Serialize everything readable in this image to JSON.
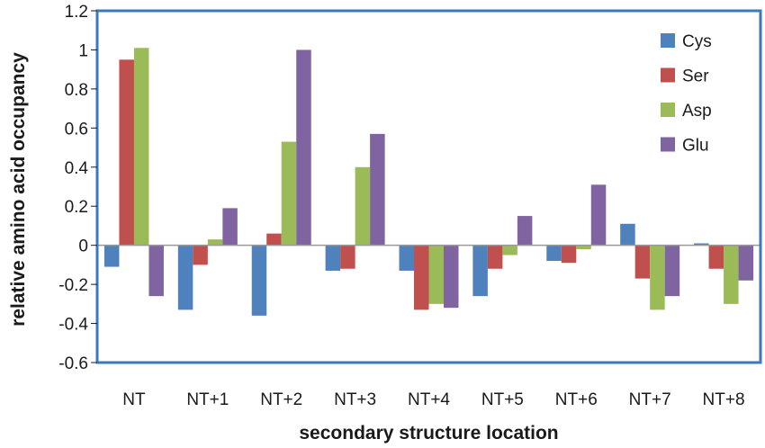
{
  "chart_data": {
    "type": "bar",
    "xlabel": "secondary structure location",
    "ylabel": "relative amino acid occupancy",
    "categories": [
      "NT",
      "NT+1",
      "NT+2",
      "NT+3",
      "NT+4",
      "NT+5",
      "NT+6",
      "NT+7",
      "NT+8"
    ],
    "ylim": [
      -0.6,
      1.2
    ],
    "yticks": [
      -0.6,
      -0.4,
      -0.2,
      0,
      0.2,
      0.4,
      0.6,
      0.8,
      1,
      1.2
    ],
    "ytick_labels": [
      "-0.6",
      "-0.4",
      "-0.2",
      "0",
      "0.2",
      "0.4",
      "0.6",
      "0.8",
      "1",
      "1.2"
    ],
    "grid": false,
    "legend_position": "top-right",
    "series": [
      {
        "name": "Cys",
        "color": "#4f81bd",
        "values": [
          -0.11,
          -0.33,
          -0.36,
          -0.13,
          -0.13,
          -0.26,
          -0.08,
          0.11,
          0.01
        ]
      },
      {
        "name": "Ser",
        "color": "#c0504d",
        "values": [
          0.95,
          -0.1,
          0.06,
          -0.12,
          -0.33,
          -0.12,
          -0.09,
          -0.17,
          -0.12
        ]
      },
      {
        "name": "Asp",
        "color": "#9bbb59",
        "values": [
          1.01,
          0.03,
          0.53,
          0.4,
          -0.3,
          -0.05,
          -0.02,
          -0.33,
          -0.3
        ]
      },
      {
        "name": "Glu",
        "color": "#8064a2",
        "values": [
          -0.26,
          0.19,
          1.0,
          0.57,
          -0.32,
          0.15,
          0.31,
          -0.26,
          -0.18
        ]
      }
    ],
    "frame_color": "#3a78c0"
  }
}
